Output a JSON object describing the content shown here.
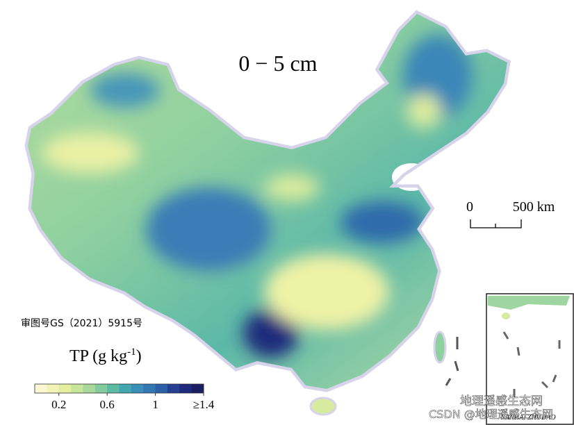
{
  "title": "0 − 5 cm",
  "scale_bar": {
    "start": "0",
    "end": "500 km"
  },
  "approval_number": "审图号GS（2021）5915号",
  "legend": {
    "label": "TP (g kg",
    "superscript": "-1",
    "label_end": ")",
    "range": [
      0,
      1.4
    ],
    "ticks": [
      0.2,
      0.6,
      1.0,
      {
        "value": 1.4,
        "label": "≥1.4"
      }
    ],
    "colors": [
      "#fbf9d4",
      "#f3f3b8",
      "#e3ee9f",
      "#c9e59a",
      "#a9d99a",
      "#83cb9e",
      "#5dbaa3",
      "#43a6b0",
      "#3a8fb8",
      "#3478b3",
      "#2d5fa6",
      "#263f92",
      "#1f2a7c",
      "#1b1e63"
    ]
  },
  "inset_label": "NANHAI ZHUDAO",
  "watermark": "地理遥感生态网",
  "watermark_footer": "CSDN @地理遥感生态网"
}
